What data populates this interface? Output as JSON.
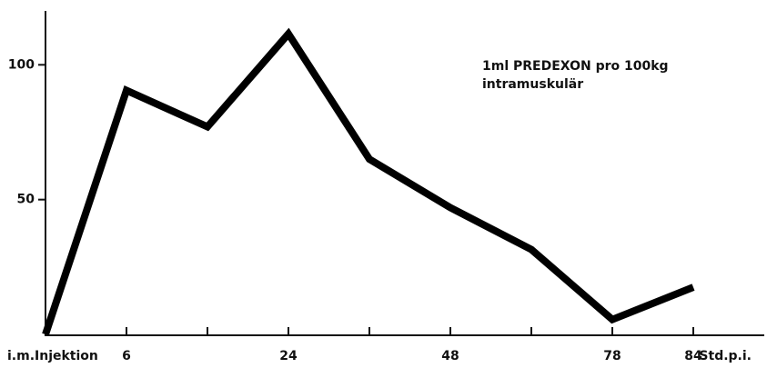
{
  "chart_data": {
    "type": "line",
    "annotation": [
      "1ml PREDEXON pro 100kg",
      "intramuskulär"
    ],
    "x_label": "Std.p.i.",
    "categories": [
      "i.m.Injektion",
      "6",
      null,
      "24",
      null,
      "48",
      null,
      "78",
      "84"
    ],
    "values": [
      0,
      90.5,
      77,
      111.5,
      65,
      47,
      31.5,
      5.5,
      17.5
    ],
    "color": "#000000",
    "ylim": [
      0,
      120
    ],
    "yticks": [
      50,
      100
    ],
    "grid": false
  }
}
